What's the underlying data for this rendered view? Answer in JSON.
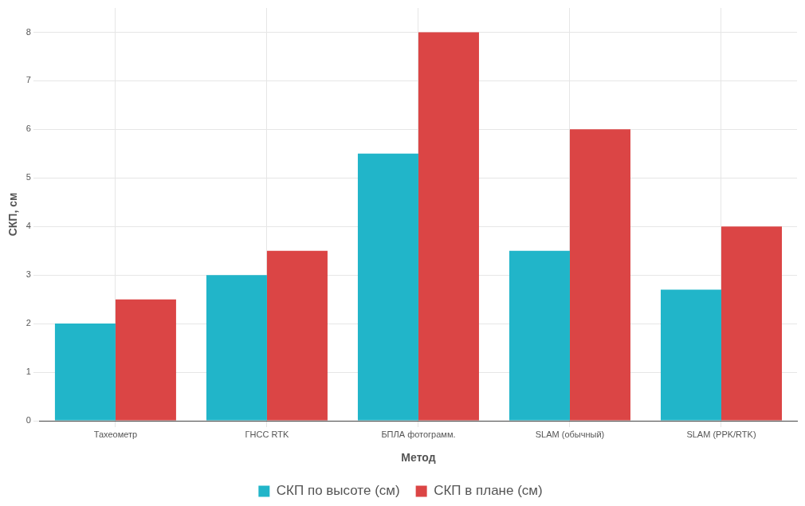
{
  "chart_data": {
    "type": "bar",
    "xlabel": "Метод",
    "ylabel": "СКП, см",
    "categories": [
      "Тахеометр",
      "ГНСС RTK",
      "БПЛА фотограмм.",
      "SLAM (обычный)",
      "SLAM (PPK/RTK)"
    ],
    "series": [
      {
        "name": "СКП по высоте (см)",
        "color": "#21b5c9",
        "values": [
          2,
          3,
          5.5,
          3.5,
          2.7
        ]
      },
      {
        "name": "СКП в плане (см)",
        "color": "#db4545",
        "values": [
          2.5,
          3.5,
          8,
          6,
          4
        ]
      }
    ],
    "ylim": [
      0,
      8.5
    ],
    "yticks": [
      0,
      1,
      2,
      3,
      4,
      5,
      6,
      7,
      8
    ],
    "grid": true,
    "legend": "bottom"
  }
}
